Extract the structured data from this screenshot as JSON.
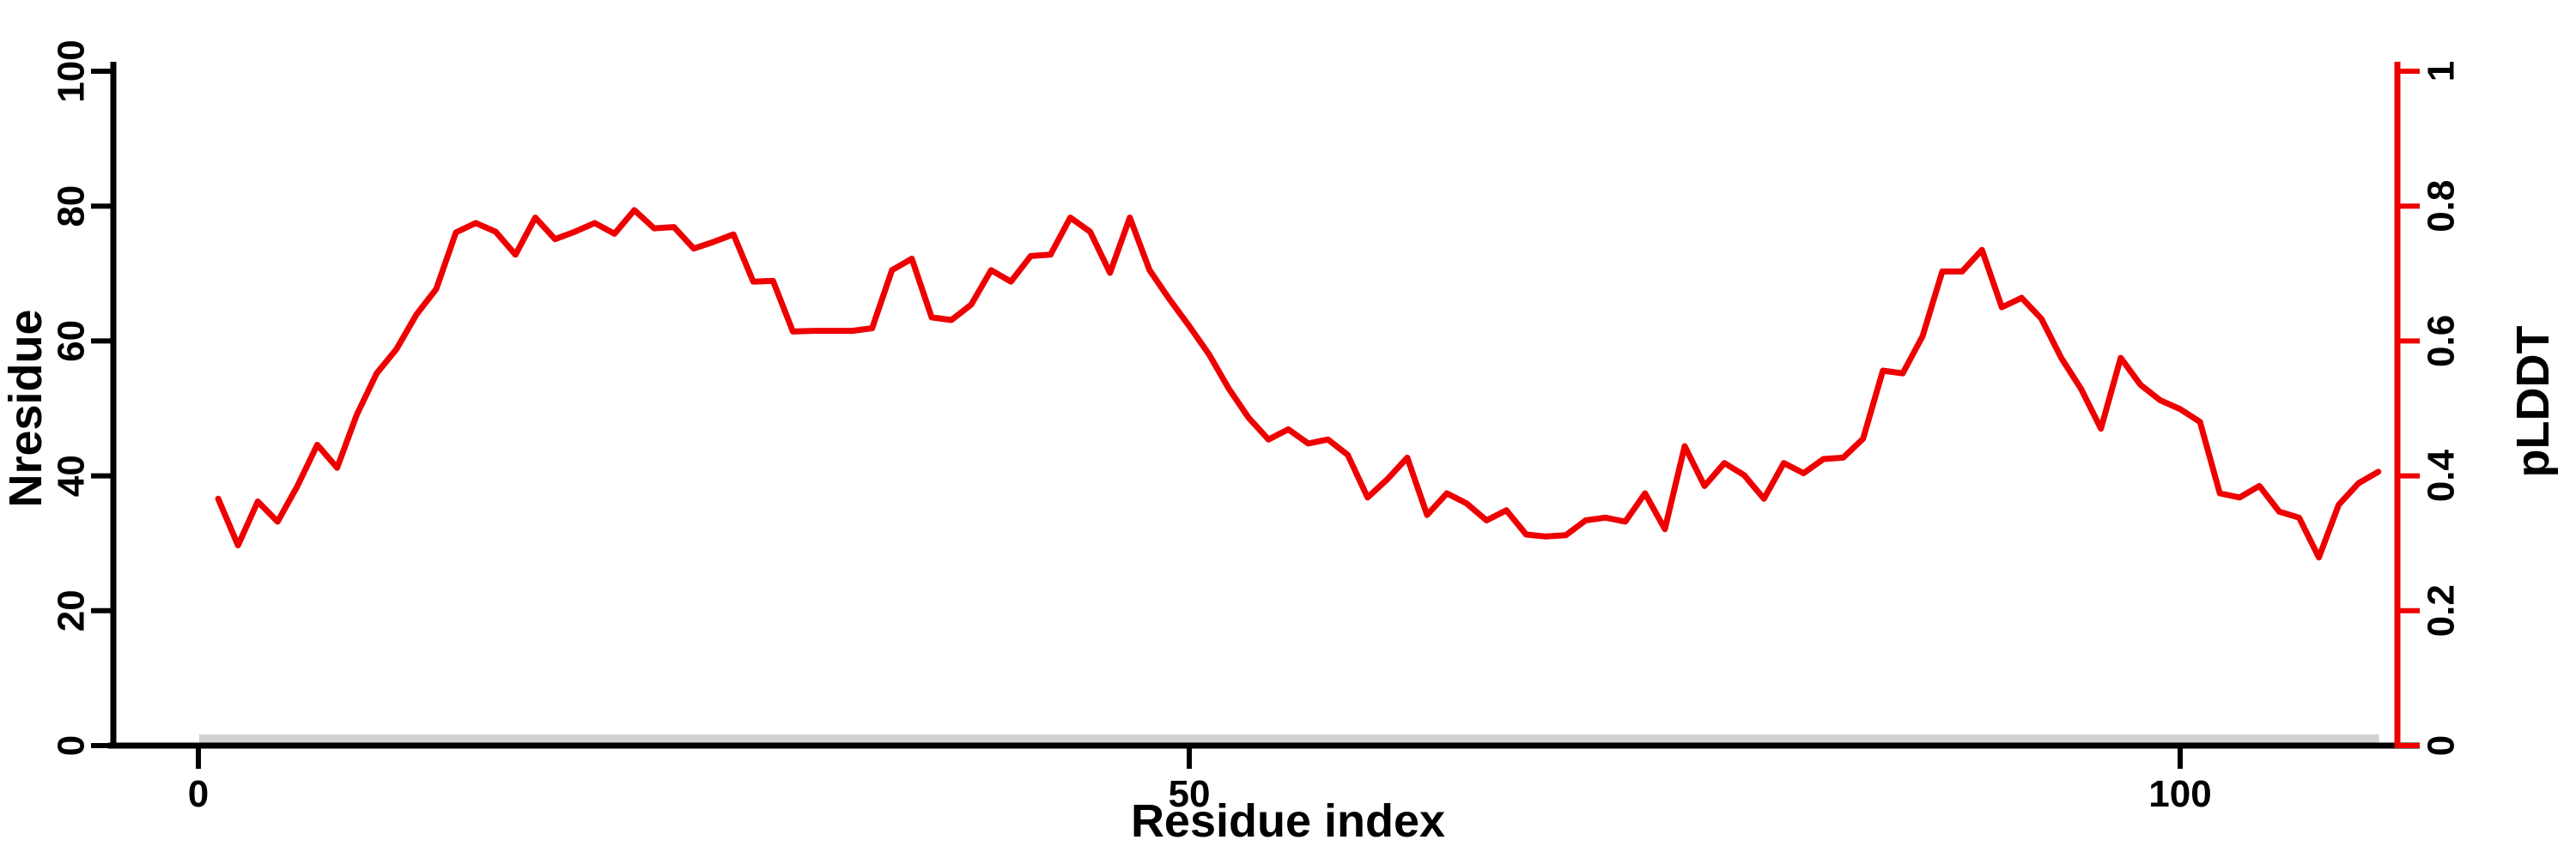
{
  "figure": {
    "background": "#ffffff"
  },
  "chart_data": {
    "type": "line",
    "title": "",
    "xlabel": "Residue index",
    "ylabel_left": "Nresidue",
    "ylabel_right": "pLDDT",
    "x_ticks": [
      0,
      50,
      100
    ],
    "xlim": [
      0,
      111
    ],
    "yleft_ticks": [
      0,
      20,
      40,
      60,
      80,
      100
    ],
    "yleft_lim": [
      0,
      100
    ],
    "yright_ticks": [
      "0",
      "0.2",
      "0.4",
      "0.6",
      "0.8",
      "1"
    ],
    "yright_lim": [
      0,
      1
    ],
    "grid": false,
    "legend": "none",
    "colors": {
      "axis_left": "#000000",
      "axis_bottom": "#000000",
      "axis_right": "#ee0000",
      "line": "#ee0000",
      "chain_bar": "#d2d2d2"
    },
    "series": [
      {
        "name": "pLDDT",
        "color": "#ee0000",
        "x_start_residue": 1,
        "values": [
          0.366,
          0.297,
          0.362,
          0.332,
          0.385,
          0.446,
          0.412,
          0.491,
          0.552,
          0.588,
          0.639,
          0.677,
          0.761,
          0.775,
          0.762,
          0.728,
          0.783,
          0.751,
          0.762,
          0.775,
          0.759,
          0.794,
          0.767,
          0.769,
          0.737,
          0.747,
          0.758,
          0.688,
          0.689,
          0.614,
          0.615,
          0.615,
          0.615,
          0.619,
          0.705,
          0.722,
          0.635,
          0.631,
          0.654,
          0.705,
          0.688,
          0.726,
          0.728,
          0.783,
          0.762,
          0.701,
          0.783,
          0.705,
          0.662,
          0.622,
          0.58,
          0.529,
          0.486,
          0.454,
          0.469,
          0.448,
          0.454,
          0.431,
          0.368,
          0.395,
          0.427,
          0.342,
          0.374,
          0.359,
          0.334,
          0.349,
          0.313,
          0.31,
          0.312,
          0.334,
          0.338,
          0.332,
          0.374,
          0.321,
          0.444,
          0.385,
          0.419,
          0.401,
          0.366,
          0.419,
          0.404,
          0.425,
          0.427,
          0.455,
          0.556,
          0.552,
          0.607,
          0.703,
          0.703,
          0.735,
          0.65,
          0.664,
          0.633,
          0.575,
          0.529,
          0.47,
          0.575,
          0.535,
          0.512,
          0.499,
          0.48,
          0.374,
          0.368,
          0.385,
          0.347,
          0.338,
          0.279,
          0.357,
          0.389,
          0.406
        ]
      }
    ],
    "annotations": [
      {
        "type": "segment_bar",
        "name": "chain-coverage-bar",
        "x_from": 0,
        "x_to": 110,
        "y_left_units": 1,
        "color": "#d2d2d2"
      }
    ]
  }
}
